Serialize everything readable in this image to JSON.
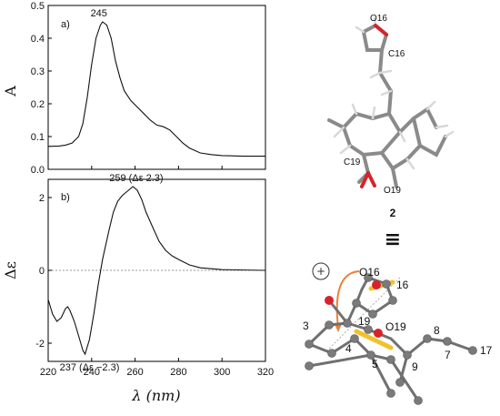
{
  "chart_data": [
    {
      "type": "line",
      "panel_label": "a)",
      "xlabel": "",
      "ylabel": "A",
      "xlim": [
        220,
        320
      ],
      "ylim": [
        0,
        0.5
      ],
      "yticks": [
        "0.0",
        "0.1",
        "0.2",
        "0.3",
        "0.4",
        "0.5"
      ],
      "grid": false,
      "series": [
        {
          "x": [
            220,
            225,
            228,
            231,
            234,
            236,
            238,
            240,
            242,
            244,
            245,
            247,
            249,
            251,
            253,
            255,
            258,
            261,
            264,
            267,
            270,
            273,
            276,
            279,
            282,
            285,
            290,
            295,
            300,
            310,
            320
          ],
          "y": [
            0.07,
            0.071,
            0.074,
            0.08,
            0.1,
            0.14,
            0.22,
            0.32,
            0.4,
            0.44,
            0.45,
            0.44,
            0.4,
            0.33,
            0.28,
            0.24,
            0.21,
            0.19,
            0.17,
            0.15,
            0.135,
            0.13,
            0.12,
            0.1,
            0.08,
            0.065,
            0.05,
            0.045,
            0.042,
            0.04,
            0.04
          ]
        }
      ],
      "annotations": [
        {
          "x": 245,
          "y": 0.45,
          "text": "245"
        }
      ]
    },
    {
      "type": "line",
      "panel_label": "b)",
      "xlabel": "λ (nm)",
      "ylabel": "Δε",
      "xlim": [
        220,
        320
      ],
      "ylim": [
        -2.5,
        2.5
      ],
      "xticks": [
        "220",
        "240",
        "260",
        "280",
        "300",
        "320"
      ],
      "yticks": [
        "-2",
        "0",
        "2"
      ],
      "zero_line": "dashed",
      "grid": false,
      "series": [
        {
          "x": [
            220,
            222,
            224,
            226,
            228,
            229,
            230,
            232,
            234,
            236,
            237,
            239,
            241,
            243,
            245,
            248,
            250,
            252,
            254,
            256,
            258,
            259,
            261,
            263,
            265,
            268,
            271,
            274,
            277,
            280,
            285,
            290,
            300,
            320
          ],
          "y": [
            -0.8,
            -1.2,
            -1.4,
            -1.3,
            -1.05,
            -1.0,
            -1.1,
            -1.4,
            -1.8,
            -2.2,
            -2.3,
            -1.9,
            -1.2,
            -0.4,
            0.3,
            1.1,
            1.6,
            1.9,
            2.05,
            2.15,
            2.25,
            2.3,
            2.2,
            1.95,
            1.6,
            1.2,
            0.8,
            0.55,
            0.4,
            0.3,
            0.15,
            0.07,
            0.02,
            0.0
          ]
        }
      ],
      "annotations": [
        {
          "x": 259,
          "y": 2.3,
          "text": "259 (Δε 2.3)"
        },
        {
          "x": 237,
          "y": -2.3,
          "text": "237 (Δε −2.3)"
        }
      ]
    }
  ],
  "molecule": {
    "atom_labels": [
      "O16",
      "C16",
      "C19",
      "O19"
    ],
    "compound_label": "2",
    "equivalence_symbol": "≡",
    "chirality_sign": "+",
    "model_labels": [
      "O16",
      "16",
      "19",
      "O19",
      "3",
      "4",
      "5",
      "8",
      "7",
      "9",
      "17"
    ]
  }
}
